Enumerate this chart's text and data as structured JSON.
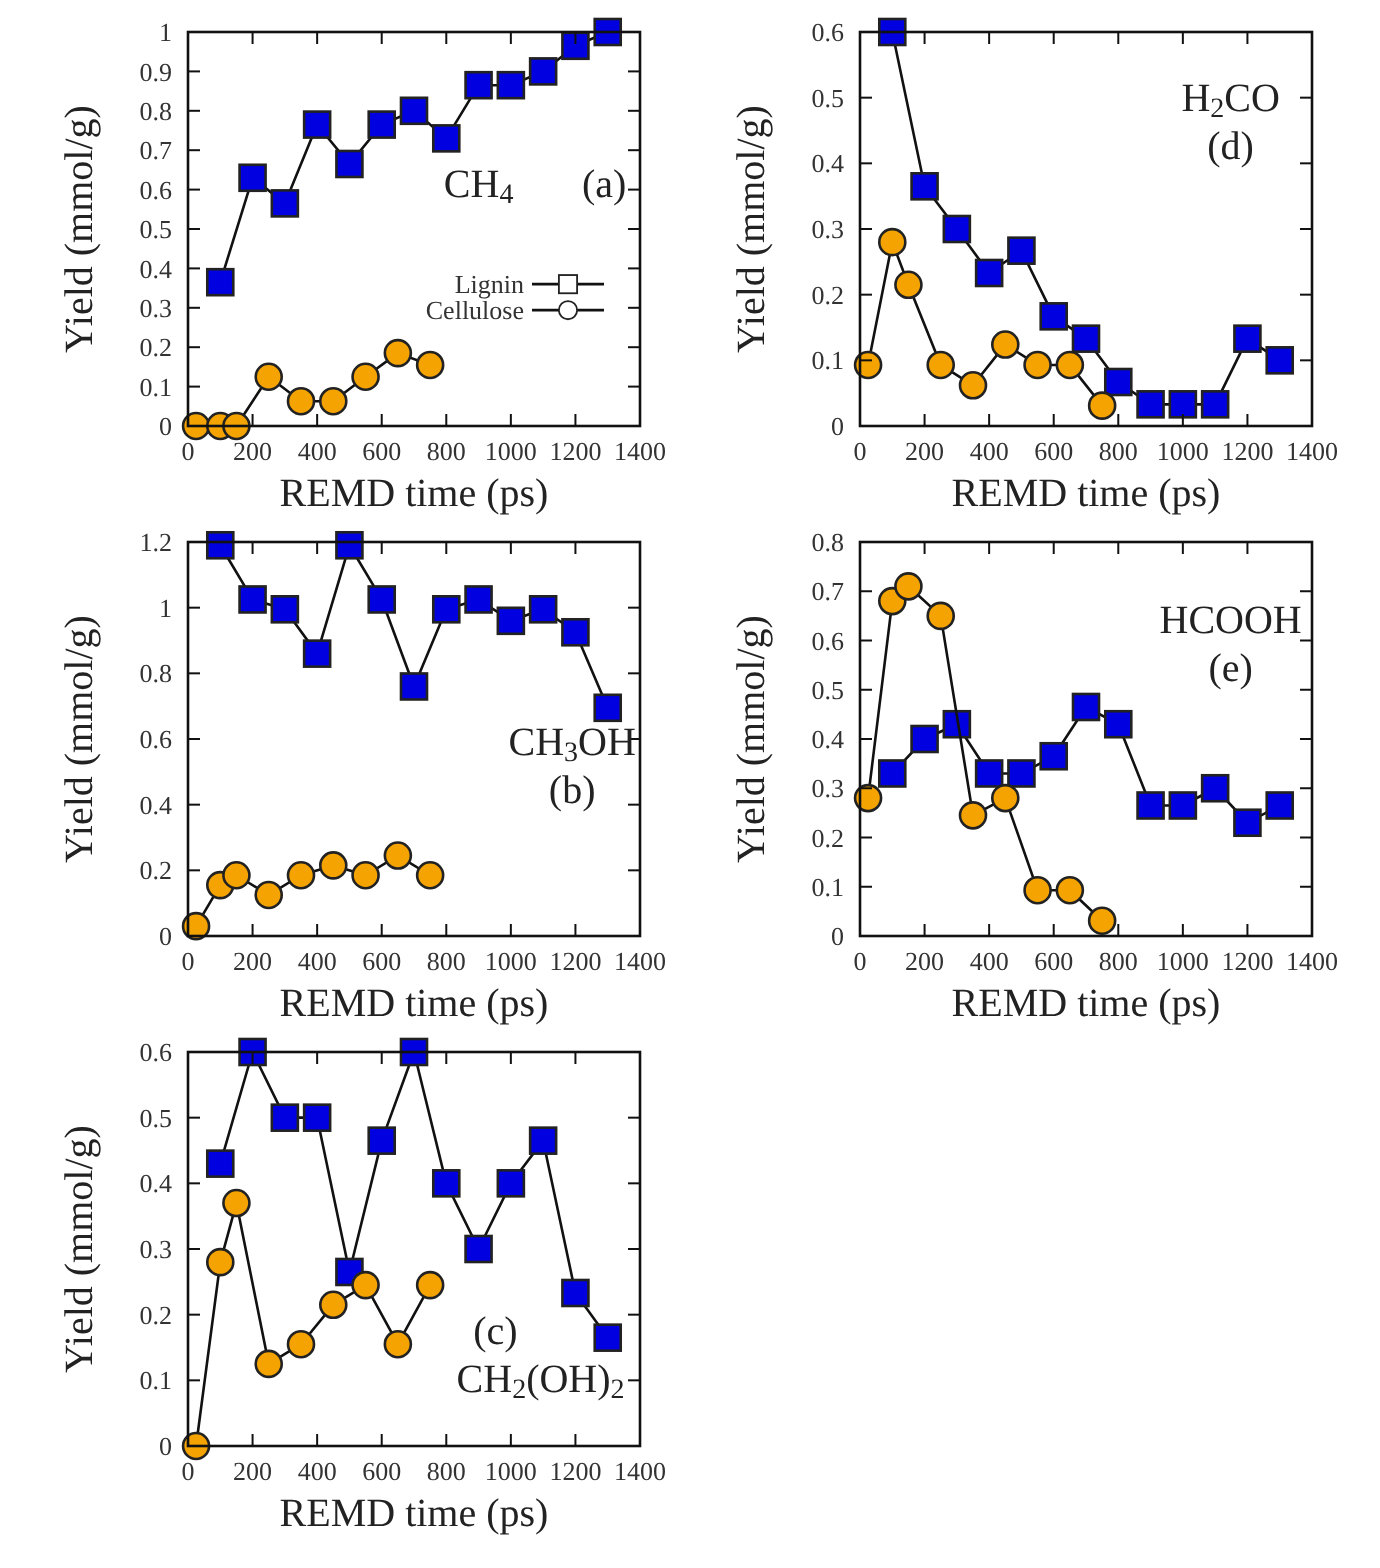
{
  "chart_data": [
    {
      "type": "line",
      "xlabel": "REMD time (ps)",
      "ylabel": "Yield (mmol/g)",
      "xlim": [
        0,
        1400
      ],
      "xticks": [
        0,
        200,
        400,
        600,
        800,
        1000,
        1200,
        1400
      ],
      "ylim": [
        0,
        1
      ],
      "yticks": [
        0,
        0.1,
        0.2,
        0.3,
        0.4,
        0.5,
        0.6,
        0.7,
        0.8,
        0.9,
        1
      ],
      "grid": false,
      "legend": "right",
      "annotations": [
        "CH$_{4}$",
        "(a)"
      ],
      "series": [
        {
          "name": "Lignin",
          "color": "#0000e0",
          "marker": "square",
          "x": [
            100,
            200,
            300,
            400,
            500,
            600,
            700,
            800,
            900,
            1000,
            1100,
            1200,
            1300
          ],
          "values": [
            0.365,
            0.63,
            0.565,
            0.765,
            0.665,
            0.765,
            0.8,
            0.73,
            0.865,
            0.865,
            0.9,
            0.965,
            1.0
          ]
        },
        {
          "name": "Cellulose",
          "color": "#f5a300",
          "marker": "circle",
          "x": [
            25,
            100,
            150,
            250,
            350,
            450,
            550,
            650,
            750
          ],
          "values": [
            0,
            0,
            0,
            0.125,
            0.063,
            0.063,
            0.125,
            0.185,
            0.155
          ]
        }
      ]
    },
    {
      "type": "line",
      "xlabel": "REMD time (ps)",
      "ylabel": "Yield (mmol/g)",
      "xlim": [
        0,
        1400
      ],
      "xticks": [
        0,
        200,
        400,
        600,
        800,
        1000,
        1200,
        1400
      ],
      "ylim": [
        0,
        0.6
      ],
      "yticks": [
        0,
        0.1,
        0.2,
        0.3,
        0.4,
        0.5,
        0.6
      ],
      "grid": false,
      "annotations": [
        "H$_{2}$CO",
        "(d)"
      ],
      "series": [
        {
          "color": "#0000e0",
          "marker": "square",
          "x": [
            100,
            200,
            300,
            400,
            500,
            600,
            700,
            800,
            900,
            1000,
            1100,
            1200,
            1300
          ],
          "values": [
            0.6,
            0.365,
            0.3,
            0.233,
            0.267,
            0.167,
            0.133,
            0.067,
            0.033,
            0.033,
            0.033,
            0.133,
            0.1
          ]
        },
        {
          "color": "#f5a300",
          "marker": "circle",
          "x": [
            25,
            100,
            150,
            250,
            350,
            450,
            550,
            650,
            750
          ],
          "values": [
            0.093,
            0.28,
            0.215,
            0.093,
            0.062,
            0.124,
            0.093,
            0.093,
            0.031
          ]
        }
      ]
    },
    {
      "type": "line",
      "xlabel": "REMD time (ps)",
      "ylabel": "Yield (mmol/g)",
      "xlim": [
        0,
        1400
      ],
      "xticks": [
        0,
        200,
        400,
        600,
        800,
        1000,
        1200,
        1400
      ],
      "ylim": [
        0,
        1.2
      ],
      "yticks": [
        0,
        0.2,
        0.4,
        0.6,
        0.8,
        1,
        1.2
      ],
      "grid": false,
      "annotations": [
        "CH$_{3}$OH",
        "(b)"
      ],
      "series": [
        {
          "color": "#0000e0",
          "marker": "square",
          "x": [
            100,
            200,
            300,
            400,
            500,
            600,
            700,
            800,
            900,
            1000,
            1100,
            1200,
            1300
          ],
          "values": [
            1.19,
            1.025,
            0.995,
            0.86,
            1.19,
            1.025,
            0.76,
            0.995,
            1.025,
            0.96,
            0.995,
            0.925,
            0.695
          ]
        },
        {
          "color": "#f5a300",
          "marker": "circle",
          "x": [
            25,
            100,
            150,
            250,
            350,
            450,
            550,
            650,
            750
          ],
          "values": [
            0.03,
            0.155,
            0.185,
            0.125,
            0.185,
            0.215,
            0.185,
            0.245,
            0.185
          ]
        }
      ]
    },
    {
      "type": "line",
      "xlabel": "REMD time (ps)",
      "ylabel": "Yield (mmol/g)",
      "xlim": [
        0,
        1400
      ],
      "xticks": [
        0,
        200,
        400,
        600,
        800,
        1000,
        1200,
        1400
      ],
      "ylim": [
        0,
        0.8
      ],
      "yticks": [
        0,
        0.1,
        0.2,
        0.3,
        0.4,
        0.5,
        0.6,
        0.7,
        0.8
      ],
      "grid": false,
      "annotations": [
        "HCOOH",
        "(e)"
      ],
      "series": [
        {
          "color": "#0000e0",
          "marker": "square",
          "x": [
            100,
            200,
            300,
            400,
            500,
            600,
            700,
            800,
            900,
            1000,
            1100,
            1200,
            1300
          ],
          "values": [
            0.33,
            0.4,
            0.43,
            0.33,
            0.33,
            0.365,
            0.465,
            0.43,
            0.265,
            0.265,
            0.3,
            0.23,
            0.265
          ]
        },
        {
          "color": "#f5a300",
          "marker": "circle",
          "x": [
            25,
            100,
            150,
            250,
            350,
            450,
            550,
            650,
            750
          ],
          "values": [
            0.28,
            0.68,
            0.71,
            0.65,
            0.245,
            0.28,
            0.093,
            0.093,
            0.031
          ]
        }
      ]
    },
    {
      "type": "line",
      "xlabel": "REMD time (ps)",
      "ylabel": "Yield (mmol/g)",
      "xlim": [
        0,
        1400
      ],
      "xticks": [
        0,
        200,
        400,
        600,
        800,
        1000,
        1200,
        1400
      ],
      "ylim": [
        0,
        0.6
      ],
      "yticks": [
        0,
        0.1,
        0.2,
        0.3,
        0.4,
        0.5,
        0.6
      ],
      "grid": false,
      "annotations": [
        "(c)",
        "CH$_{2}$(OH)$_{2}$"
      ],
      "series": [
        {
          "color": "#0000e0",
          "marker": "square",
          "x": [
            100,
            200,
            300,
            400,
            500,
            600,
            700,
            800,
            900,
            1000,
            1100,
            1200,
            1300
          ],
          "values": [
            0.43,
            0.6,
            0.5,
            0.5,
            0.265,
            0.465,
            0.6,
            0.4,
            0.3,
            0.4,
            0.465,
            0.233,
            0.165
          ]
        },
        {
          "color": "#f5a300",
          "marker": "circle",
          "x": [
            25,
            100,
            150,
            250,
            350,
            450,
            550,
            650,
            750
          ],
          "values": [
            0,
            0.28,
            0.37,
            0.125,
            0.155,
            0.215,
            0.245,
            0.155,
            0.245
          ]
        }
      ]
    }
  ]
}
